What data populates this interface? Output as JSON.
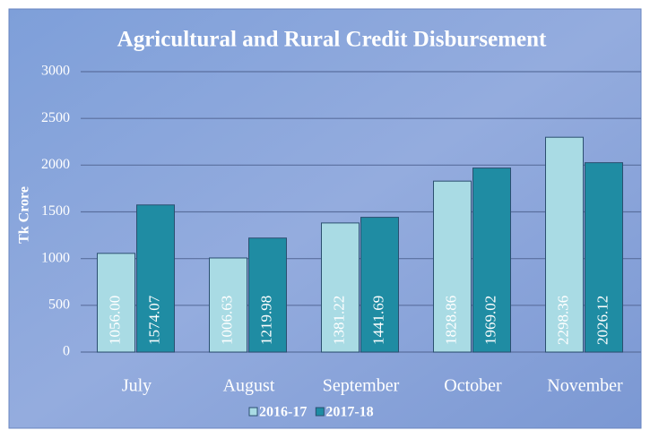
{
  "chart_data": {
    "type": "bar",
    "title": "Agricultural and Rural Credit Disbursement",
    "y_label": "Tk Crore",
    "categories": [
      "July",
      "August",
      "September",
      "October",
      "November"
    ],
    "series": [
      {
        "name": "2016-17",
        "color": "#a9dbe4",
        "values": [
          1056,
          1006.63,
          1381.22,
          1828.86,
          2298.36
        ],
        "value_labels": [
          "1056.00",
          "1006.63",
          "1381.22",
          "1828.86",
          "2298.36"
        ]
      },
      {
        "name": "2017-18",
        "color": "#1f8ca3",
        "values": [
          1574.07,
          1219.98,
          1441.69,
          1969.02,
          2026.12
        ],
        "value_labels": [
          "1574.07",
          "1219.98",
          "1441.69",
          "1969.02",
          "2026.12"
        ]
      }
    ],
    "ylim": [
      0,
      3000
    ],
    "yticks": [
      0,
      500,
      1000,
      1500,
      2000,
      2500,
      3000
    ],
    "grid": true,
    "legend": "bottom"
  }
}
